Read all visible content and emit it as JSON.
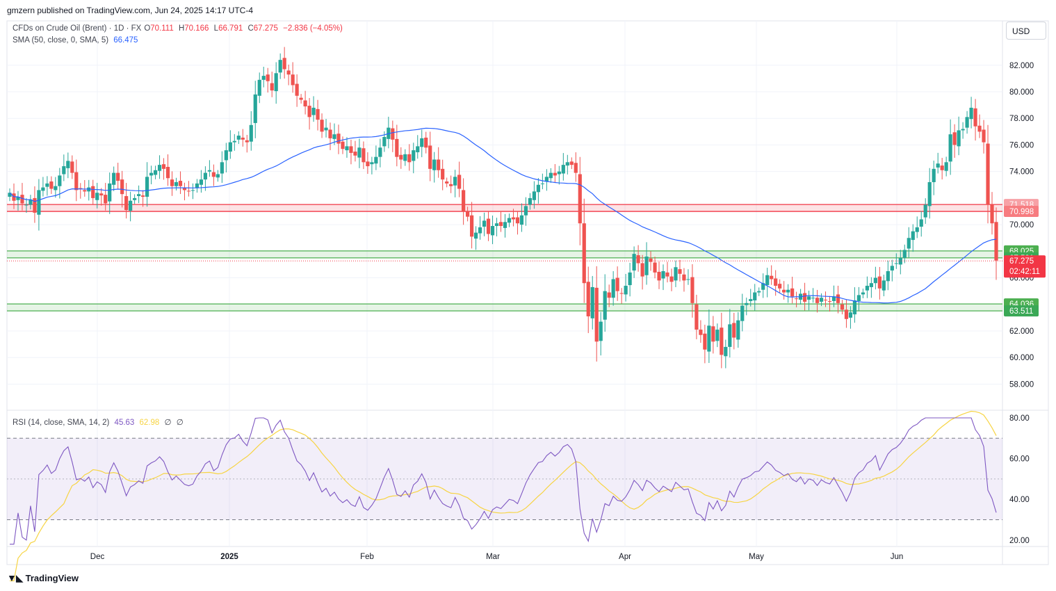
{
  "header": {
    "publisher_line": "gmzern published on TradingView.com, Jun 24, 2025 14:17 UTC-4"
  },
  "legend": {
    "symbol": "CFDs on Crude Oil (Brent) · 1D · FX",
    "o_label": "O",
    "o": "70.111",
    "h_label": "H",
    "h": "70.166",
    "l_label": "L",
    "l": "66.791",
    "c_label": "C",
    "c": "67.275",
    "change": "−2.836 (−4.05%)",
    "sma_label": "SMA (50, close, 0, SMA, 5)",
    "sma_value": "66.475",
    "rsi_label": "RSI (14, close, SMA, 14, 2)",
    "rsi_value": "45.63",
    "rsi_ma_value": "62.98",
    "rsi_extra1": "∅",
    "rsi_extra2": "∅"
  },
  "currency_button": "USD",
  "footer": {
    "brand": "TradingView",
    "logo_icon": "tradingview-logo-icon"
  },
  "colors": {
    "up": "#26a69a",
    "down": "#ef5350",
    "sma": "#2962ff",
    "rsi": "#7e57c2",
    "rsi_ma": "#f7d443",
    "resistance_zone": "#f23645",
    "support_zone": "#4caf50",
    "price_label_bg": "#f23645"
  },
  "chart_data": [
    {
      "type": "candlestick",
      "title": "CFDs on Crude Oil (Brent)",
      "interval": "1D",
      "ylim": [
        56.0,
        84.0
      ],
      "price_ticks": [
        "82.000",
        "80.000",
        "78.000",
        "76.000",
        "74.000",
        "70.000",
        "66.000",
        "62.000",
        "60.000",
        "58.000"
      ],
      "x_tick_labels": [
        "Dec",
        "2025",
        "Feb",
        "Mar",
        "Apr",
        "May",
        "Jun"
      ],
      "grid": true,
      "zones": [
        {
          "name": "resistance",
          "low": 70.998,
          "high": 71.518,
          "low_label": "70.998",
          "high_label": "71.518",
          "color": "red"
        },
        {
          "name": "resistance2",
          "low": 67.501,
          "high": 68.025,
          "low_label": "67.501",
          "high_label": "68.025",
          "color": "green"
        },
        {
          "name": "support",
          "low": 63.511,
          "high": 64.036,
          "low_label": "63.511",
          "high_label": "64.036",
          "color": "green"
        }
      ],
      "last_price": 67.275,
      "last_price_label": "67.275",
      "countdown": "02:42:11",
      "sma_series_name": "SMA (50, close, 0, SMA, 5)",
      "sma_last": 66.475,
      "closes": [
        72.4,
        71.8,
        72.1,
        71.6,
        71.5,
        71.9,
        70.9,
        72.6,
        72.8,
        73.1,
        72.7,
        72.9,
        73.7,
        74.4,
        74.8,
        73.9,
        72.6,
        72.7,
        72.5,
        72.8,
        72.0,
        72.4,
        72.2,
        71.6,
        73.1,
        73.9,
        73.3,
        72.3,
        71.1,
        71.8,
        72.0,
        72.3,
        72.1,
        73.6,
        73.9,
        74.1,
        74.5,
        74.2,
        73.5,
        72.9,
        73.2,
        72.9,
        72.6,
        72.5,
        72.6,
        73.1,
        73.4,
        73.9,
        74.1,
        73.6,
        73.8,
        74.7,
        75.6,
        76.2,
        76.3,
        76.7,
        76.4,
        76.2,
        77.5,
        79.8,
        80.9,
        81.2,
        80.8,
        80.1,
        81.4,
        82.4,
        81.7,
        81.3,
        80.5,
        79.7,
        79.4,
        78.9,
        78.1,
        78.8,
        77.9,
        77.0,
        77.3,
        76.5,
        76.8,
        76.1,
        75.7,
        75.9,
        75.4,
        75.2,
        75.8,
        74.7,
        74.4,
        74.7,
        75.1,
        75.8,
        76.6,
        77.3,
        76.4,
        75.1,
        74.9,
        75.3,
        74.7,
        75.6,
        75.9,
        76.5,
        75.8,
        74.2,
        74.9,
        74.1,
        73.4,
        73.1,
        72.9,
        73.6,
        72.7,
        71.0,
        70.6,
        69.1,
        69.4,
        69.8,
        70.3,
        69.3,
        69.9,
        70.1,
        69.9,
        70.2,
        70.5,
        70.4,
        70.1,
        70.7,
        71.4,
        72.0,
        72.5,
        73.0,
        73.1,
        73.6,
        73.9,
        73.7,
        74.0,
        74.5,
        74.7,
        74.5,
        73.9,
        70.1,
        65.6,
        63.1,
        65.3,
        61.2,
        62.7,
        65.0,
        64.5,
        65.9,
        65.0,
        64.8,
        65.4,
        66.4,
        67.8,
        67.1,
        66.1,
        67.6,
        67.2,
        66.4,
        65.8,
        66.5,
        66.1,
        65.7,
        66.8,
        66.3,
        65.8,
        65.9,
        64.1,
        62.1,
        61.7,
        60.6,
        62.4,
        61.2,
        62.1,
        60.2,
        60.8,
        62.5,
        61.5,
        62.8,
        63.9,
        64.1,
        64.4,
        64.9,
        65.0,
        65.6,
        66.2,
        65.9,
        65.4,
        65.2,
        64.9,
        65.1,
        64.6,
        64.4,
        64.8,
        64.2,
        64.6,
        64.5,
        64.1,
        64.5,
        64.3,
        64.2,
        64.6,
        64.1,
        63.6,
        62.9,
        63.4,
        64.3,
        64.7,
        64.9,
        65.4,
        65.6,
        66.0,
        65.2,
        65.8,
        66.5,
        66.9,
        67.1,
        67.5,
        68.1,
        69.0,
        69.5,
        69.8,
        70.4,
        71.5,
        73.2,
        74.2,
        74.6,
        74.1,
        74.7,
        76.8,
        76.0,
        77.1,
        77.2,
        78.1,
        78.8,
        77.4,
        77.0,
        76.2,
        71.5,
        70.1,
        67.3
      ]
    },
    {
      "type": "line",
      "title": "RSI (14, close, SMA, 14, 2)",
      "ylim": [
        20,
        80
      ],
      "y_ticks": [
        "80.00",
        "60.00",
        "40.00",
        "20.00"
      ],
      "bands": [
        30,
        50,
        70
      ],
      "series": [
        {
          "name": "RSI",
          "last": 45.63
        },
        {
          "name": "RSI-based MA",
          "last": 62.98
        }
      ]
    }
  ]
}
